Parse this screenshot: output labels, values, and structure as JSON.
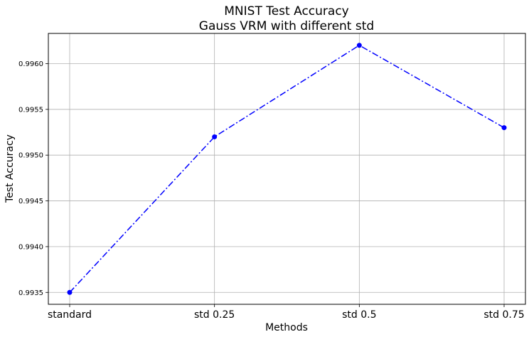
{
  "chart_data": {
    "type": "line",
    "title": "MNIST Test Accuracy",
    "subtitle": "Gauss VRM with different std",
    "xlabel": "Methods",
    "ylabel": "Test Accuracy",
    "categories": [
      "standard",
      "std 0.25",
      "std 0.5",
      "std 0.75"
    ],
    "series": [
      {
        "values": [
          0.9935,
          0.9952,
          0.9962,
          0.9953
        ],
        "color": "#0000ff",
        "line_style": "dash-dot",
        "marker": "circle"
      }
    ],
    "yticks": [
      "0.9935",
      "0.9940",
      "0.9945",
      "0.9950",
      "0.9955",
      "0.9960"
    ],
    "ylim": [
      0.99337,
      0.99633
    ],
    "grid": true,
    "legend": "none"
  }
}
